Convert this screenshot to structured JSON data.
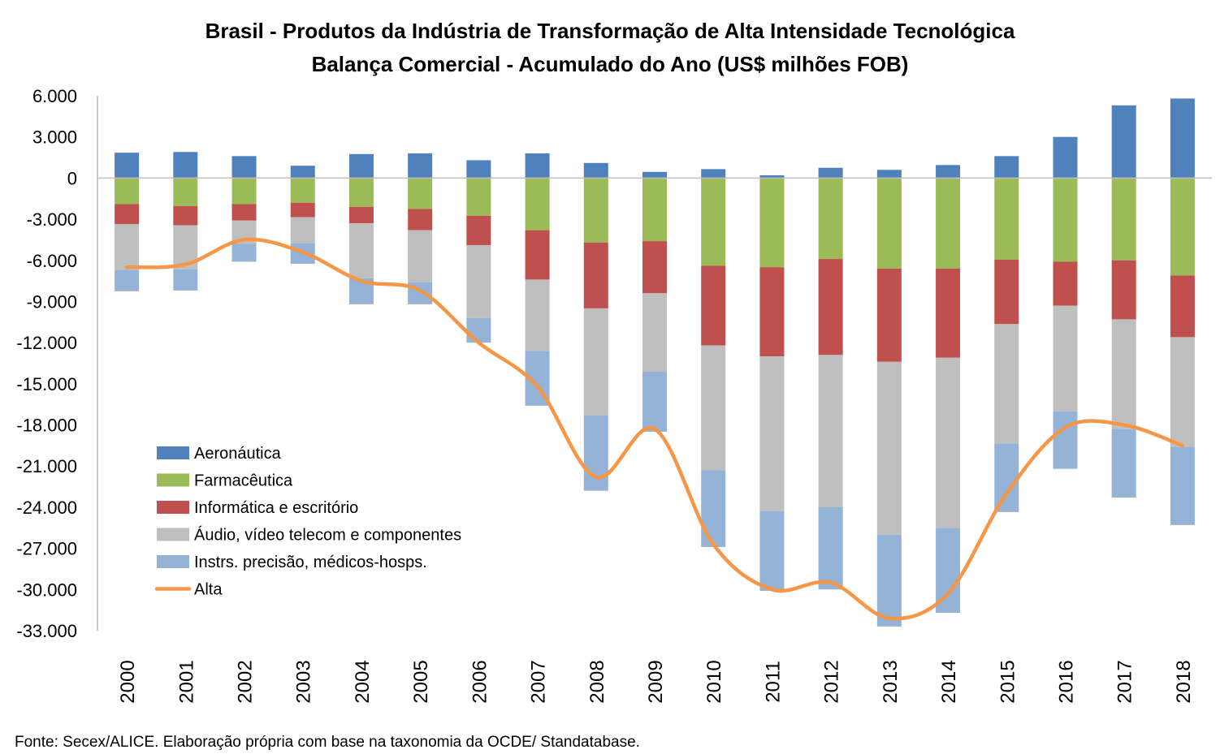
{
  "chart_data": {
    "type": "bar",
    "stacked": true,
    "title": "Brasil - Produtos da Indústria de Transformação de Alta Intensidade Tecnológica",
    "subtitle": "Balança Comercial - Acumulado do Ano (US$ milhões FOB)",
    "source": "Fonte: Secex/ALICE. Elaboração própria com base na taxonomia da OCDE/ Standatabase.",
    "xlabel": "",
    "ylabel": "",
    "ylim": [
      -33000,
      6000
    ],
    "yticks": [
      6000,
      3000,
      0,
      -3000,
      -6000,
      -9000,
      -12000,
      -15000,
      -18000,
      -21000,
      -24000,
      -27000,
      -30000,
      -33000
    ],
    "ytick_labels": [
      "6.000",
      "3.000",
      "0",
      "-3.000",
      "-6.000",
      "-9.000",
      "-12.000",
      "-15.000",
      "-18.000",
      "-21.000",
      "-24.000",
      "-27.000",
      "-30.000",
      "-33.000"
    ],
    "grid": false,
    "legend_position": "bottom-left",
    "categories": [
      "2000",
      "2001",
      "2002",
      "2003",
      "2004",
      "2005",
      "2006",
      "2007",
      "2008",
      "2009",
      "2010",
      "2011",
      "2012",
      "2013",
      "2014",
      "2015",
      "2016",
      "2017",
      "2018"
    ],
    "series": [
      {
        "name": "Aeronáutica",
        "type": "bar",
        "color": "#4f81bd",
        "values": [
          1850,
          1900,
          1600,
          900,
          1750,
          1800,
          1300,
          1800,
          1100,
          450,
          650,
          200,
          750,
          600,
          950,
          1600,
          3000,
          5300,
          5800
        ]
      },
      {
        "name": "Farmacêutica",
        "type": "bar",
        "color": "#9bbb59",
        "values": [
          -1900,
          -2050,
          -1900,
          -1800,
          -2100,
          -2250,
          -2750,
          -3800,
          -4700,
          -4600,
          -6400,
          -6500,
          -5900,
          -6600,
          -6600,
          -5950,
          -6100,
          -6000,
          -7100
        ]
      },
      {
        "name": "Informática e escritório",
        "type": "bar",
        "color": "#c0504d",
        "values": [
          -1450,
          -1400,
          -1200,
          -1050,
          -1200,
          -1550,
          -2150,
          -3600,
          -4800,
          -3800,
          -5800,
          -6500,
          -7000,
          -6800,
          -6500,
          -4700,
          -3200,
          -4300,
          -4500
        ]
      },
      {
        "name": "Áudio, vídeo telecom e componentes",
        "type": "bar",
        "color": "#bfbfbf",
        "values": [
          -3350,
          -3200,
          -1700,
          -1900,
          -4000,
          -3800,
          -5300,
          -5200,
          -7800,
          -5700,
          -9100,
          -11300,
          -11100,
          -12600,
          -12400,
          -8700,
          -7700,
          -8000,
          -8000
        ]
      },
      {
        "name": "Instrs. precisão, médicos-hosps.",
        "type": "bar",
        "color": "#95b3d7",
        "values": [
          -1550,
          -1550,
          -1300,
          -1500,
          -1900,
          -1600,
          -1800,
          -4000,
          -5500,
          -4400,
          -5600,
          -5800,
          -6000,
          -6700,
          -6200,
          -5000,
          -4200,
          -5000,
          -5700
        ]
      },
      {
        "name": "Alta",
        "type": "line",
        "color": "#f79646",
        "values": [
          -6500,
          -6300,
          -4500,
          -5400,
          -7500,
          -8200,
          -12000,
          -15200,
          -21800,
          -18300,
          -26700,
          -30000,
          -29500,
          -32100,
          -30300,
          -23000,
          -18200,
          -18000,
          -19500
        ]
      }
    ]
  }
}
